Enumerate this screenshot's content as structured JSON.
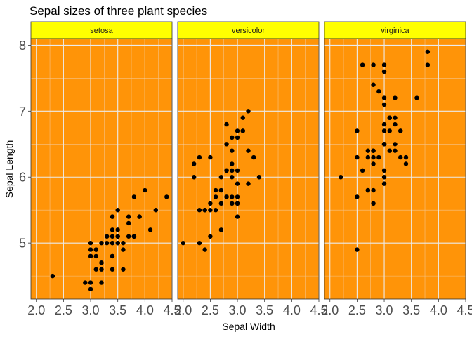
{
  "chart_data": {
    "type": "scatter",
    "title": "Sepal sizes of three plant species",
    "xlabel": "Sepal Width",
    "ylabel": "Sepal Length",
    "xlim": [
      1.9,
      4.5
    ],
    "ylim": [
      4.15,
      8.1
    ],
    "x_ticks": [
      2.0,
      2.5,
      3.0,
      3.5,
      4.0,
      4.5
    ],
    "x_tick_labels": [
      "2.0",
      "2.5",
      "3.0",
      "3.5",
      "4.0",
      "4.5"
    ],
    "y_ticks": [
      5,
      6,
      7,
      8
    ],
    "y_tick_labels": [
      "5",
      "6",
      "7",
      "8"
    ],
    "grid": true,
    "colors": {
      "panel_background": "#ff9408",
      "strip_background": "#ffff00",
      "grid_major": "#ebebeb",
      "grid_minor": "#f5c38a",
      "point": "#000000"
    },
    "facets": [
      {
        "label": "setosa",
        "points": [
          [
            3.5,
            5.1
          ],
          [
            3.0,
            4.9
          ],
          [
            3.2,
            4.7
          ],
          [
            3.1,
            4.6
          ],
          [
            3.6,
            5.0
          ],
          [
            3.9,
            5.4
          ],
          [
            3.4,
            4.6
          ],
          [
            3.4,
            5.0
          ],
          [
            2.9,
            4.4
          ],
          [
            3.1,
            4.9
          ],
          [
            3.7,
            5.4
          ],
          [
            3.4,
            4.8
          ],
          [
            3.0,
            4.8
          ],
          [
            3.0,
            4.3
          ],
          [
            4.0,
            5.8
          ],
          [
            4.4,
            5.7
          ],
          [
            3.9,
            5.4
          ],
          [
            3.5,
            5.1
          ],
          [
            3.8,
            5.7
          ],
          [
            3.8,
            5.1
          ],
          [
            3.4,
            5.4
          ],
          [
            3.7,
            5.1
          ],
          [
            3.6,
            4.6
          ],
          [
            3.3,
            5.1
          ],
          [
            3.4,
            4.8
          ],
          [
            3.0,
            5.0
          ],
          [
            3.4,
            5.0
          ],
          [
            3.5,
            5.2
          ],
          [
            3.4,
            5.2
          ],
          [
            3.2,
            4.7
          ],
          [
            3.1,
            4.8
          ],
          [
            3.4,
            5.4
          ],
          [
            4.1,
            5.2
          ],
          [
            4.2,
            5.5
          ],
          [
            3.1,
            4.9
          ],
          [
            3.2,
            5.0
          ],
          [
            3.5,
            5.5
          ],
          [
            3.6,
            4.9
          ],
          [
            3.0,
            4.4
          ],
          [
            3.4,
            5.1
          ],
          [
            3.5,
            5.0
          ],
          [
            2.3,
            4.5
          ],
          [
            3.2,
            4.4
          ],
          [
            3.5,
            5.0
          ],
          [
            3.8,
            5.1
          ],
          [
            3.0,
            4.8
          ],
          [
            3.8,
            5.1
          ],
          [
            3.2,
            4.6
          ],
          [
            3.7,
            5.3
          ],
          [
            3.3,
            5.0
          ]
        ]
      },
      {
        "label": "versicolor",
        "points": [
          [
            3.2,
            7.0
          ],
          [
            3.2,
            6.4
          ],
          [
            3.1,
            6.9
          ],
          [
            2.3,
            5.5
          ],
          [
            2.8,
            6.5
          ],
          [
            2.8,
            5.7
          ],
          [
            3.3,
            6.3
          ],
          [
            2.4,
            4.9
          ],
          [
            2.9,
            6.6
          ],
          [
            2.7,
            5.2
          ],
          [
            2.0,
            5.0
          ],
          [
            3.0,
            5.9
          ],
          [
            2.2,
            6.0
          ],
          [
            2.9,
            6.1
          ],
          [
            2.9,
            5.6
          ],
          [
            3.1,
            6.7
          ],
          [
            3.0,
            5.6
          ],
          [
            2.7,
            5.8
          ],
          [
            2.2,
            6.2
          ],
          [
            2.5,
            5.6
          ],
          [
            3.2,
            5.9
          ],
          [
            2.8,
            6.1
          ],
          [
            2.5,
            6.3
          ],
          [
            2.8,
            6.1
          ],
          [
            2.9,
            6.4
          ],
          [
            3.0,
            6.6
          ],
          [
            2.8,
            6.8
          ],
          [
            3.0,
            6.7
          ],
          [
            2.9,
            6.0
          ],
          [
            2.6,
            5.7
          ],
          [
            2.4,
            5.5
          ],
          [
            2.4,
            5.5
          ],
          [
            2.7,
            5.8
          ],
          [
            2.7,
            6.0
          ],
          [
            3.0,
            5.4
          ],
          [
            3.4,
            6.0
          ],
          [
            3.1,
            6.7
          ],
          [
            2.3,
            6.3
          ],
          [
            3.0,
            5.6
          ],
          [
            2.5,
            5.5
          ],
          [
            2.6,
            5.5
          ],
          [
            3.0,
            6.1
          ],
          [
            2.6,
            5.8
          ],
          [
            2.3,
            5.0
          ],
          [
            2.7,
            5.6
          ],
          [
            3.0,
            5.7
          ],
          [
            2.9,
            5.7
          ],
          [
            2.9,
            6.2
          ],
          [
            2.5,
            5.1
          ],
          [
            2.8,
            5.7
          ]
        ]
      },
      {
        "label": "virginica",
        "points": [
          [
            3.3,
            6.3
          ],
          [
            2.7,
            5.8
          ],
          [
            3.0,
            7.1
          ],
          [
            2.9,
            6.3
          ],
          [
            3.0,
            6.5
          ],
          [
            3.0,
            7.6
          ],
          [
            2.5,
            4.9
          ],
          [
            2.9,
            7.3
          ],
          [
            2.5,
            6.7
          ],
          [
            3.6,
            7.2
          ],
          [
            3.2,
            6.5
          ],
          [
            2.7,
            6.4
          ],
          [
            3.0,
            6.8
          ],
          [
            2.5,
            5.7
          ],
          [
            2.8,
            5.8
          ],
          [
            3.2,
            6.4
          ],
          [
            3.0,
            6.5
          ],
          [
            3.8,
            7.7
          ],
          [
            2.6,
            7.7
          ],
          [
            2.2,
            6.0
          ],
          [
            3.2,
            6.9
          ],
          [
            2.8,
            5.6
          ],
          [
            2.8,
            7.7
          ],
          [
            2.7,
            6.3
          ],
          [
            3.3,
            6.7
          ],
          [
            3.2,
            7.2
          ],
          [
            2.8,
            6.2
          ],
          [
            3.0,
            6.1
          ],
          [
            2.8,
            6.4
          ],
          [
            3.0,
            7.2
          ],
          [
            2.8,
            7.4
          ],
          [
            3.8,
            7.9
          ],
          [
            2.8,
            6.4
          ],
          [
            2.8,
            6.3
          ],
          [
            2.6,
            6.1
          ],
          [
            3.0,
            7.7
          ],
          [
            3.4,
            6.3
          ],
          [
            3.1,
            6.4
          ],
          [
            3.0,
            6.0
          ],
          [
            3.1,
            6.9
          ],
          [
            3.1,
            6.7
          ],
          [
            3.1,
            6.9
          ],
          [
            2.7,
            5.8
          ],
          [
            3.2,
            6.8
          ],
          [
            3.3,
            6.7
          ],
          [
            3.0,
            6.7
          ],
          [
            2.5,
            6.3
          ],
          [
            3.0,
            6.5
          ],
          [
            3.4,
            6.2
          ],
          [
            3.0,
            5.9
          ]
        ]
      }
    ]
  }
}
